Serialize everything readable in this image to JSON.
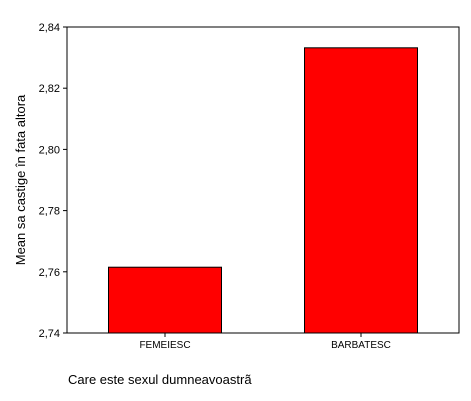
{
  "chart_data": {
    "type": "bar",
    "categories": [
      "FEMEIESC",
      "BARBATESC"
    ],
    "values": [
      2.7615,
      2.8332
    ],
    "xlabel": "Care este sexul dumneavoastrã",
    "ylabel": "Mean sa castige în fata altora",
    "ylim": [
      2.74,
      2.84
    ],
    "yticks": [
      "2,74",
      "2,76",
      "2,78",
      "2,80",
      "2,82",
      "2,84"
    ],
    "grid": false,
    "legend": "none",
    "bar_color": "#ff0000"
  }
}
